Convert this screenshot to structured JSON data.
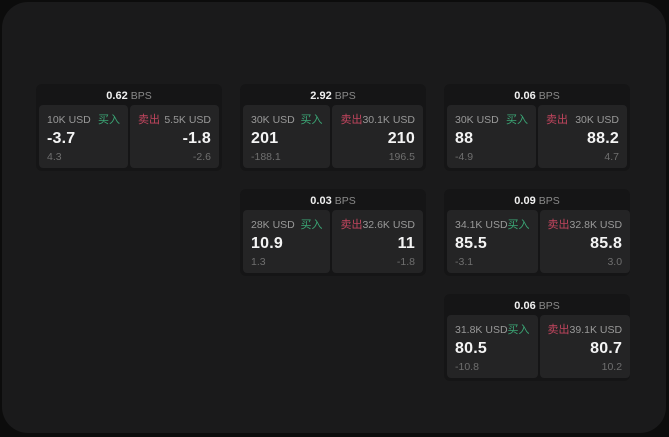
{
  "labels": {
    "buy": "买入",
    "sell": "卖出",
    "bps_suffix": "BPS"
  },
  "colors": {
    "outer_background": "#0c0c0c",
    "panel_background": "#1a1a1b",
    "card_background": "#151516",
    "tile_background": "#242425",
    "buy_green": "#3ba776",
    "sell_red": "#c2455e",
    "text_primary": "#f4f4f4",
    "text_muted": "#999999",
    "text_dim": "#6f6f6f"
  },
  "cards": [
    {
      "bps": "0.62",
      "buy": {
        "amount": "10K USD",
        "price": "-3.7",
        "change": "4.3"
      },
      "sell": {
        "amount": "5.5K USD",
        "price": "-1.8",
        "change": "-2.6"
      }
    },
    {
      "bps": "2.92",
      "buy": {
        "amount": "30K USD",
        "price": "201",
        "change": "-188.1"
      },
      "sell": {
        "amount": "30.1K USD",
        "price": "210",
        "change": "196.5"
      }
    },
    {
      "bps": "0.06",
      "buy": {
        "amount": "30K USD",
        "price": "88",
        "change": "-4.9"
      },
      "sell": {
        "amount": "30K USD",
        "price": "88.2",
        "change": "4.7"
      }
    },
    {
      "bps": "0.03",
      "buy": {
        "amount": "28K USD",
        "price": "10.9",
        "change": "1.3"
      },
      "sell": {
        "amount": "32.6K USD",
        "price": "11",
        "change": "-1.8"
      }
    },
    {
      "bps": "0.09",
      "buy": {
        "amount": "34.1K USD",
        "price": "85.5",
        "change": "-3.1"
      },
      "sell": {
        "amount": "32.8K USD",
        "price": "85.8",
        "change": "3.0"
      }
    },
    {
      "bps": "0.06",
      "buy": {
        "amount": "31.8K USD",
        "price": "80.5",
        "change": "-10.8"
      },
      "sell": {
        "amount": "39.1K USD",
        "price": "80.7",
        "change": "10.2"
      }
    }
  ]
}
